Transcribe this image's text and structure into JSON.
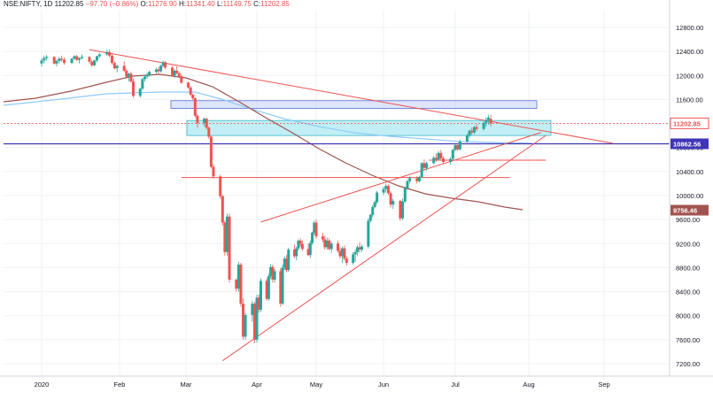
{
  "header": {
    "symbol": "NSE:NIFTY, 1D",
    "last": "11202.85",
    "change": "−97.70 (−0.86%)",
    "o_label": "O:",
    "o": "11276.90",
    "h_label": "H:",
    "h": "11341.40",
    "l_label": "L:",
    "l": "11149.75",
    "c_label": "C:",
    "c": "11202.85"
  },
  "colors": {
    "up": "#26a69a",
    "down": "#ef5350",
    "trend": "#ef5350",
    "ma_fast": "#90cbf9",
    "ma_slow": "#a1544f",
    "support": "#3f35b8",
    "zone": "#b2ebf2",
    "grid": "#eef0f3"
  },
  "chart_data": {
    "type": "candlestick",
    "y_axis": {
      "min": 7000,
      "max": 13000,
      "ticks": [
        "12800.00",
        "12400.00",
        "12000.00",
        "11600.00",
        "11200.00",
        "10800.00",
        "10400.00",
        "10000.00",
        "9600.00",
        "9200.00",
        "8800.00",
        "8400.00",
        "8000.00",
        "7600.00",
        "7200.00"
      ]
    },
    "x_axis": {
      "ticks": [
        "2020",
        "Feb",
        "Mar",
        "Apr",
        "May",
        "Jun",
        "Jul",
        "Aug",
        "Sep"
      ]
    },
    "price_labels": [
      {
        "text": "11202.85",
        "value": 11202.85,
        "color": "#ef5350",
        "style": "outline"
      },
      {
        "text": "10862.56",
        "value": 10862.56,
        "color": "#3f35b8",
        "style": "fill"
      },
      {
        "text": "9756.46",
        "value": 9756.46,
        "color": "#a1544f",
        "style": "fill"
      }
    ],
    "candles": [
      [
        12200,
        12290,
        12150,
        12250
      ],
      [
        12250,
        12330,
        12200,
        12290
      ],
      [
        12290,
        12340,
        12250,
        12310
      ],
      [
        12310,
        12320,
        12180,
        12200
      ],
      [
        12200,
        12270,
        12150,
        12240
      ],
      [
        12240,
        12310,
        12200,
        12280
      ],
      [
        12280,
        12330,
        12230,
        12260
      ],
      [
        12260,
        12300,
        12180,
        12210
      ],
      [
        12210,
        12290,
        12190,
        12280
      ],
      [
        12280,
        12340,
        12260,
        12320
      ],
      [
        12320,
        12340,
        12240,
        12260
      ],
      [
        12260,
        12300,
        12200,
        12290
      ],
      [
        12290,
        12350,
        12270,
        12310
      ],
      [
        12310,
        12320,
        12200,
        12230
      ],
      [
        12230,
        12260,
        12140,
        12170
      ],
      [
        12170,
        12260,
        12150,
        12250
      ],
      [
        12250,
        12330,
        12220,
        12320
      ],
      [
        12320,
        12380,
        12290,
        12350
      ],
      [
        12350,
        12430,
        12330,
        12390
      ],
      [
        12390,
        12430,
        12300,
        12330
      ],
      [
        12330,
        12360,
        12180,
        12210
      ],
      [
        12210,
        12240,
        12100,
        12120
      ],
      [
        12120,
        12180,
        12050,
        12160
      ],
      [
        12160,
        12230,
        12060,
        12080
      ],
      [
        12080,
        12110,
        11950,
        11980
      ],
      [
        11980,
        12050,
        11900,
        12030
      ],
      [
        12030,
        12060,
        11880,
        11900
      ],
      [
        11900,
        11950,
        11630,
        11660
      ],
      [
        11660,
        11800,
        11630,
        11780
      ],
      [
        11780,
        11960,
        11760,
        11940
      ],
      [
        11940,
        12010,
        11900,
        11980
      ],
      [
        11980,
        12050,
        11940,
        12010
      ],
      [
        12010,
        12080,
        11980,
        12060
      ],
      [
        12060,
        12130,
        12030,
        12100
      ],
      [
        12100,
        12140,
        12030,
        12070
      ],
      [
        12070,
        12180,
        12050,
        12160
      ],
      [
        12160,
        12250,
        12130,
        12220
      ],
      [
        12220,
        12240,
        12100,
        12130
      ],
      [
        12130,
        12160,
        11980,
        12000
      ],
      [
        12000,
        12110,
        11960,
        12080
      ],
      [
        12080,
        12150,
        12020,
        12040
      ],
      [
        12040,
        12060,
        11960,
        11990
      ],
      [
        11990,
        12010,
        11860,
        11880
      ],
      [
        11880,
        11900,
        11780,
        11800
      ],
      [
        11800,
        11820,
        11660,
        11680
      ],
      [
        11680,
        11700,
        11590,
        11620
      ],
      [
        11620,
        11640,
        11300,
        11330
      ],
      [
        11330,
        11360,
        11130,
        11210
      ],
      [
        11210,
        11300,
        11150,
        11280
      ],
      [
        11280,
        11300,
        11100,
        11130
      ],
      [
        11130,
        11150,
        10950,
        10980
      ],
      [
        10980,
        11000,
        10450,
        10480
      ],
      [
        10480,
        10520,
        10280,
        10320
      ],
      [
        10320,
        10350,
        9950,
        9990
      ],
      [
        9990,
        10010,
        9500,
        9550
      ],
      [
        9550,
        9580,
        9000,
        9060
      ],
      [
        9060,
        9700,
        9000,
        9650
      ],
      [
        9650,
        9700,
        8550,
        8600
      ],
      [
        8600,
        8620,
        8400,
        8450
      ],
      [
        8450,
        8900,
        8400,
        8850
      ],
      [
        8850,
        8880,
        8150,
        8200
      ],
      [
        8200,
        8290,
        7600,
        7650
      ],
      [
        7650,
        8050,
        7600,
        8010
      ],
      [
        8010,
        8250,
        7900,
        8200
      ],
      [
        8200,
        8230,
        7540,
        7600
      ],
      [
        7600,
        8350,
        7550,
        8300
      ],
      [
        8300,
        8350,
        8050,
        8100
      ],
      [
        8100,
        8620,
        8060,
        8580
      ],
      [
        8580,
        8620,
        8250,
        8280
      ],
      [
        8280,
        8700,
        8250,
        8660
      ],
      [
        8660,
        8860,
        8620,
        8810
      ],
      [
        8810,
        8850,
        8550,
        8600
      ],
      [
        8600,
        8780,
        8550,
        8740
      ],
      [
        8740,
        8790,
        8150,
        8200
      ],
      [
        8200,
        8850,
        8180,
        8800
      ],
      [
        8800,
        8990,
        8760,
        8950
      ],
      [
        8950,
        9010,
        8720,
        8760
      ],
      [
        8760,
        9130,
        8730,
        9100
      ],
      [
        9100,
        9180,
        8960,
        8990
      ],
      [
        8990,
        9150,
        8920,
        9120
      ],
      [
        9120,
        9270,
        9090,
        9250
      ],
      [
        9250,
        9290,
        9150,
        9190
      ],
      [
        9190,
        9250,
        9080,
        9110
      ],
      [
        9110,
        9200,
        8990,
        9010
      ],
      [
        9010,
        9250,
        8960,
        9210
      ],
      [
        9210,
        9400,
        9180,
        9380
      ],
      [
        9380,
        9580,
        9350,
        9550
      ],
      [
        9550,
        9600,
        9280,
        9320
      ],
      [
        9320,
        9380,
        9220,
        9270
      ],
      [
        9270,
        9330,
        9100,
        9140
      ],
      [
        9140,
        9300,
        9100,
        9250
      ],
      [
        9250,
        9290,
        9090,
        9110
      ],
      [
        9110,
        9230,
        9050,
        9200
      ],
      [
        9200,
        9250,
        9050,
        9080
      ],
      [
        9080,
        9140,
        8950,
        8990
      ],
      [
        8990,
        9150,
        8880,
        9120
      ],
      [
        9120,
        9170,
        8920,
        8950
      ],
      [
        8950,
        8990,
        8830,
        8880
      ],
      [
        8880,
        9060,
        8850,
        9020
      ],
      [
        9020,
        9100,
        8900,
        9060
      ],
      [
        9060,
        9170,
        9000,
        9140
      ],
      [
        9140,
        9220,
        9050,
        9100
      ],
      [
        9100,
        9180,
        9060,
        9150
      ],
      [
        9150,
        9620,
        9120,
        9580
      ],
      [
        9580,
        9700,
        9550,
        9680
      ],
      [
        9680,
        9840,
        9640,
        9810
      ],
      [
        9810,
        9920,
        9790,
        9890
      ],
      [
        9890,
        10080,
        9860,
        10050
      ],
      [
        10050,
        10150,
        10010,
        10110
      ],
      [
        10110,
        10200,
        10050,
        10160
      ],
      [
        10160,
        10190,
        10010,
        10040
      ],
      [
        10040,
        10070,
        9800,
        9850
      ],
      [
        9850,
        9950,
        9780,
        9910
      ],
      [
        9910,
        9930,
        9580,
        9620
      ],
      [
        9620,
        9950,
        9590,
        9900
      ],
      [
        9900,
        10150,
        9880,
        10120
      ],
      [
        10120,
        10270,
        10090,
        10240
      ],
      [
        10240,
        10320,
        10200,
        10290
      ],
      [
        10290,
        10320,
        10200,
        10240
      ],
      [
        10240,
        10330,
        10220,
        10310
      ],
      [
        10310,
        10560,
        10300,
        10540
      ],
      [
        10540,
        10600,
        10420,
        10460
      ],
      [
        10460,
        10560,
        10420,
        10540
      ],
      [
        10540,
        10660,
        10520,
        10630
      ],
      [
        10630,
        10700,
        10560,
        10600
      ],
      [
        10600,
        10740,
        10580,
        10710
      ],
      [
        10710,
        10760,
        10580,
        10620
      ],
      [
        10620,
        10660,
        10540,
        10560
      ],
      [
        10560,
        10640,
        10520,
        10610
      ],
      [
        10610,
        10780,
        10590,
        10760
      ],
      [
        10760,
        10860,
        10740,
        10840
      ],
      [
        10840,
        10870,
        10740,
        10770
      ],
      [
        10770,
        10930,
        10750,
        10900
      ],
      [
        10900,
        11030,
        10880,
        11000
      ],
      [
        11000,
        11100,
        10960,
        11080
      ],
      [
        11080,
        11130,
        11010,
        11050
      ],
      [
        11050,
        11160,
        11020,
        11140
      ],
      [
        11140,
        11190,
        11070,
        11110
      ],
      [
        11110,
        11240,
        11080,
        11210
      ],
      [
        11210,
        11300,
        11150,
        11260
      ],
      [
        11260,
        11340,
        11180,
        11300
      ],
      [
        11276.9,
        11341.4,
        11149.75,
        11202.85
      ]
    ],
    "trendlines": [
      {
        "name": "upper trendline",
        "from": [
          "2020-01-20",
          12430
        ],
        "to": [
          "2020-09-05",
          10870
        ]
      },
      {
        "name": "lower trendline",
        "from": [
          "2020-03-17",
          7250
        ],
        "to": [
          "2020-08-08",
          11000
        ]
      },
      {
        "name": "channel top",
        "from": [
          "2020-04-03",
          9560
        ],
        "to": [
          "2020-08-06",
          11050
        ]
      },
      {
        "name": "horizontal resistance 1",
        "from": [
          "2020-02-28",
          10300
        ],
        "to": [
          "2020-07-24",
          10300
        ]
      },
      {
        "name": "horizontal resistance 2",
        "from": [
          "2020-06-20",
          10590
        ],
        "to": [
          "2020-08-08",
          10590
        ]
      }
    ],
    "zones": [
      {
        "name": "zone 1",
        "y1": 11450,
        "y2": 11580
      },
      {
        "name": "zone 2",
        "y1": 11000,
        "y2": 11250
      }
    ],
    "horizontal_lines": [
      {
        "name": "support 10862.56",
        "value": 10862.56
      },
      {
        "name": "last price dotted",
        "value": 11202.85
      }
    ]
  }
}
